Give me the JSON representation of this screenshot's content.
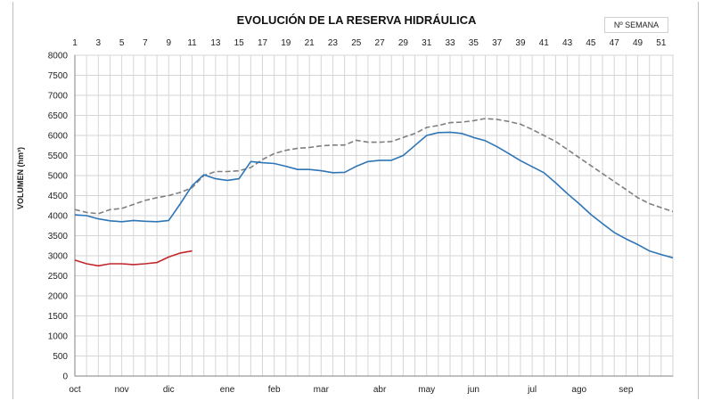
{
  "chart_data": {
    "type": "line",
    "title": "EVOLUCIÓN DE LA RESERVA HIDRÁULICA",
    "top_axis_label": "Nº SEMANA",
    "ylabel": "VOLUMEN (hm³)",
    "ylim": [
      0,
      8000
    ],
    "ytick_step": 500,
    "xlim": [
      1,
      52
    ],
    "week_tick_labels": [
      1,
      3,
      5,
      7,
      9,
      11,
      13,
      15,
      17,
      19,
      21,
      23,
      25,
      27,
      29,
      31,
      33,
      35,
      37,
      39,
      41,
      43,
      45,
      47,
      49,
      51
    ],
    "months": [
      {
        "label": "oct",
        "week": 1
      },
      {
        "label": "nov",
        "week": 5
      },
      {
        "label": "dic",
        "week": 9
      },
      {
        "label": "ene",
        "week": 14
      },
      {
        "label": "feb",
        "week": 18
      },
      {
        "label": "mar",
        "week": 22
      },
      {
        "label": "abr",
        "week": 27
      },
      {
        "label": "may",
        "week": 31
      },
      {
        "label": "jun",
        "week": 35
      },
      {
        "label": "jul",
        "week": 40
      },
      {
        "label": "ago",
        "week": 44
      },
      {
        "label": "sep",
        "week": 48
      }
    ],
    "grid": true,
    "series": [
      {
        "color": "#7f7f7f",
        "dash": true,
        "x": [
          1,
          2,
          3,
          4,
          5,
          6,
          7,
          8,
          9,
          10,
          11,
          12,
          13,
          14,
          15,
          16,
          17,
          18,
          19,
          20,
          21,
          22,
          23,
          24,
          25,
          26,
          27,
          28,
          29,
          30,
          31,
          32,
          33,
          34,
          35,
          36,
          37,
          38,
          39,
          40,
          41,
          42,
          43,
          44,
          45,
          46,
          47,
          48,
          49,
          50,
          51,
          52
        ],
        "values": [
          4150,
          4080,
          4050,
          4150,
          4180,
          4280,
          4380,
          4450,
          4500,
          4580,
          4700,
          5000,
          5100,
          5100,
          5120,
          5200,
          5400,
          5550,
          5630,
          5680,
          5700,
          5740,
          5760,
          5760,
          5880,
          5830,
          5830,
          5850,
          5950,
          6050,
          6200,
          6250,
          6320,
          6330,
          6370,
          6420,
          6400,
          6350,
          6280,
          6150,
          6000,
          5850,
          5650,
          5450,
          5250,
          5050,
          4850,
          4650,
          4450,
          4300,
          4200,
          4100
        ]
      },
      {
        "color": "#2e75b6",
        "dash": false,
        "x": [
          1,
          2,
          3,
          4,
          5,
          6,
          7,
          8,
          9,
          10,
          11,
          12,
          13,
          14,
          15,
          16,
          17,
          18,
          19,
          20,
          21,
          22,
          23,
          24,
          25,
          26,
          27,
          28,
          29,
          30,
          31,
          32,
          33,
          34,
          35,
          36,
          37,
          38,
          39,
          40,
          41,
          42,
          43,
          44,
          45,
          46,
          47,
          48,
          49,
          50,
          51,
          52
        ],
        "values": [
          4020,
          4000,
          3920,
          3870,
          3850,
          3880,
          3860,
          3850,
          3880,
          4300,
          4750,
          5020,
          4920,
          4880,
          4920,
          5350,
          5320,
          5300,
          5230,
          5150,
          5150,
          5120,
          5070,
          5080,
          5230,
          5350,
          5380,
          5380,
          5500,
          5750,
          6000,
          6070,
          6080,
          6050,
          5950,
          5870,
          5720,
          5550,
          5370,
          5220,
          5070,
          4820,
          4550,
          4300,
          4030,
          3800,
          3580,
          3420,
          3280,
          3120,
          3030,
          2950
        ]
      },
      {
        "color": "#c0282d",
        "dash": false,
        "x": [
          1,
          2,
          3,
          4,
          5,
          6,
          7,
          8,
          9,
          10,
          11
        ],
        "values": [
          2890,
          2800,
          2750,
          2800,
          2800,
          2780,
          2800,
          2830,
          2970,
          3070,
          3120
        ]
      }
    ]
  }
}
